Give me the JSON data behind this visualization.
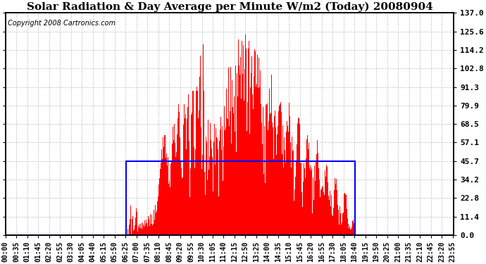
{
  "title": "Solar Radiation & Day Average per Minute W/m2 (Today) 20080904",
  "copyright_text": "Copyright 2008 Cartronics.com",
  "background_color": "#ffffff",
  "plot_bg_color": "#ffffff",
  "bar_color": "#ff0000",
  "box_color": "#0000ff",
  "grid_color": "#b0b0b0",
  "y_max": 137.0,
  "y_min": 0.0,
  "y_ticks": [
    0.0,
    11.4,
    22.8,
    34.2,
    45.7,
    57.1,
    68.5,
    79.9,
    91.3,
    102.8,
    114.2,
    125.6,
    137.0
  ],
  "total_minutes": 1440,
  "sunrise_minute": 386,
  "sunset_minute": 1121,
  "day_avg": 45.7,
  "title_fontsize": 11,
  "copyright_fontsize": 7,
  "tick_fontsize": 7,
  "tick_interval": 35
}
